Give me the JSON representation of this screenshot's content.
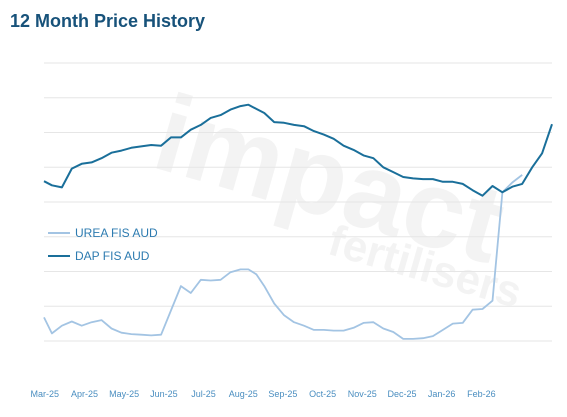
{
  "title": "12 Month Price History",
  "chart_data": {
    "type": "line",
    "title": "12 Month Price History",
    "xlabel": "",
    "ylabel": "",
    "ylim": [
      0,
      8
    ],
    "grid": true,
    "legend_position": "left",
    "x_ticks": [
      "Mar-25",
      "Apr-25",
      "May-25",
      "Jun-25",
      "Jul-25",
      "Aug-25",
      "Sep-25",
      "Oct-25",
      "Nov-25",
      "Dec-25",
      "Jan-26",
      "Feb-26"
    ],
    "colors": {
      "UREA FIS AUD": "#a3c4e3",
      "DAP FIS AUD": "#1a6f9a",
      "grid": "#e6e6e6",
      "ticks": "#4a8ec0"
    },
    "series": [
      {
        "name": "UREA FIS AUD",
        "points": [
          [
            0,
            0.68
          ],
          [
            0.2,
            0.22
          ],
          [
            0.45,
            0.44
          ],
          [
            0.7,
            0.56
          ],
          [
            0.95,
            0.44
          ],
          [
            1.2,
            0.54
          ],
          [
            1.45,
            0.6
          ],
          [
            1.7,
            0.36
          ],
          [
            1.95,
            0.24
          ],
          [
            2.2,
            0.2
          ],
          [
            2.45,
            0.18
          ],
          [
            2.7,
            0.16
          ],
          [
            2.95,
            0.18
          ],
          [
            3.2,
            0.88
          ],
          [
            3.45,
            1.58
          ],
          [
            3.7,
            1.38
          ],
          [
            3.95,
            1.76
          ],
          [
            4.2,
            1.74
          ],
          [
            4.45,
            1.76
          ],
          [
            4.7,
            1.98
          ],
          [
            4.95,
            2.06
          ],
          [
            5.15,
            2.06
          ],
          [
            5.35,
            1.92
          ],
          [
            5.55,
            1.58
          ],
          [
            5.8,
            1.08
          ],
          [
            6.05,
            0.74
          ],
          [
            6.3,
            0.54
          ],
          [
            6.55,
            0.44
          ],
          [
            6.8,
            0.32
          ],
          [
            7.05,
            0.32
          ],
          [
            7.3,
            0.3
          ],
          [
            7.55,
            0.3
          ],
          [
            7.8,
            0.38
          ],
          [
            8.05,
            0.52
          ],
          [
            8.3,
            0.54
          ],
          [
            8.55,
            0.36
          ],
          [
            8.8,
            0.26
          ],
          [
            9.05,
            0.06
          ],
          [
            9.3,
            0.06
          ],
          [
            9.55,
            0.08
          ],
          [
            9.8,
            0.14
          ],
          [
            10.05,
            0.32
          ],
          [
            10.3,
            0.5
          ],
          [
            10.55,
            0.52
          ],
          [
            10.8,
            0.9
          ],
          [
            11.05,
            0.92
          ],
          [
            11.3,
            1.16
          ],
          [
            11.55,
            4.28
          ],
          [
            11.8,
            4.56
          ],
          [
            12.05,
            4.78
          ]
        ],
        "interpolated_note": ""
      },
      {
        "name": "DAP FIS AUD",
        "points": [
          [
            0,
            4.6
          ],
          [
            0.2,
            4.48
          ],
          [
            0.45,
            4.42
          ],
          [
            0.7,
            4.96
          ],
          [
            0.95,
            5.1
          ],
          [
            1.2,
            5.14
          ],
          [
            1.45,
            5.26
          ],
          [
            1.7,
            5.42
          ],
          [
            1.95,
            5.48
          ],
          [
            2.2,
            5.56
          ],
          [
            2.45,
            5.6
          ],
          [
            2.7,
            5.64
          ],
          [
            2.95,
            5.62
          ],
          [
            3.2,
            5.86
          ],
          [
            3.45,
            5.86
          ],
          [
            3.7,
            6.08
          ],
          [
            3.95,
            6.22
          ],
          [
            4.2,
            6.42
          ],
          [
            4.45,
            6.5
          ],
          [
            4.7,
            6.66
          ],
          [
            4.95,
            6.76
          ],
          [
            5.15,
            6.8
          ],
          [
            5.35,
            6.68
          ],
          [
            5.55,
            6.56
          ],
          [
            5.8,
            6.3
          ],
          [
            6.05,
            6.28
          ],
          [
            6.3,
            6.22
          ],
          [
            6.55,
            6.18
          ],
          [
            6.8,
            6.04
          ],
          [
            7.05,
            5.94
          ],
          [
            7.3,
            5.82
          ],
          [
            7.55,
            5.62
          ],
          [
            7.8,
            5.5
          ],
          [
            8.05,
            5.34
          ],
          [
            8.3,
            5.26
          ],
          [
            8.55,
            5.0
          ],
          [
            8.8,
            4.86
          ],
          [
            9.05,
            4.72
          ],
          [
            9.3,
            4.68
          ],
          [
            9.55,
            4.66
          ],
          [
            9.8,
            4.66
          ],
          [
            10.05,
            4.58
          ],
          [
            10.3,
            4.58
          ],
          [
            10.55,
            4.52
          ],
          [
            10.8,
            4.34
          ],
          [
            11.05,
            4.18
          ],
          [
            11.3,
            4.46
          ],
          [
            11.55,
            4.28
          ],
          [
            11.8,
            4.44
          ],
          [
            12.05,
            4.52
          ],
          [
            12.3,
            5.0
          ],
          [
            12.55,
            5.4
          ],
          [
            12.8,
            6.24
          ]
        ]
      }
    ]
  }
}
